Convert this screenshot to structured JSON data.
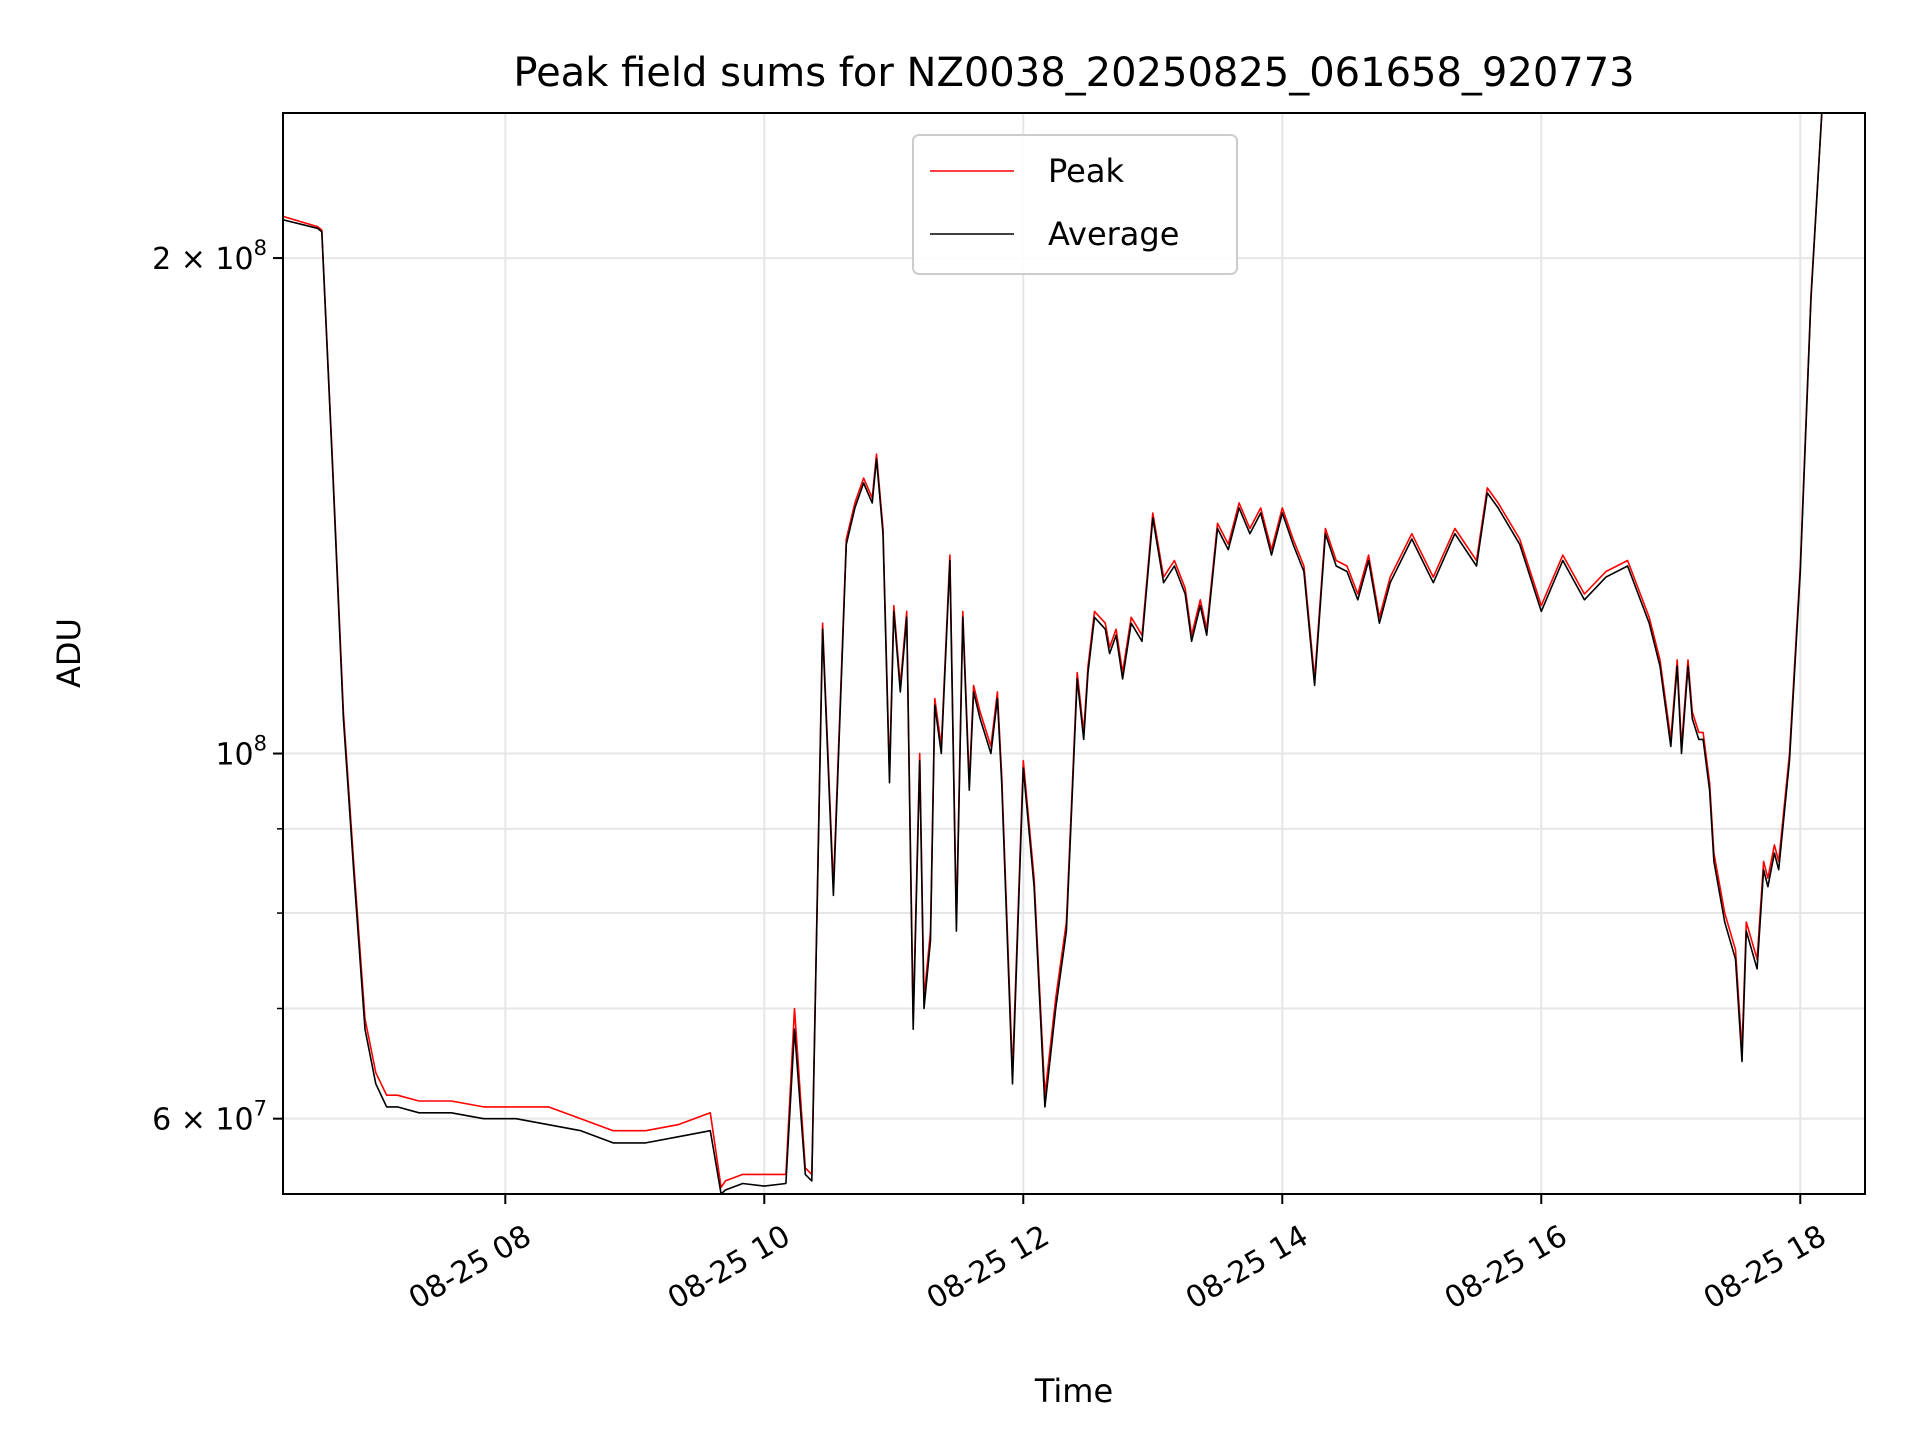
{
  "chart_data": {
    "type": "line",
    "title": "Peak field sums for NZ0038_20250825_061658_920773",
    "xlabel": "Time",
    "ylabel": "ADU",
    "y_scale": "log",
    "xlim": [
      "2025-08-25 06:17",
      "2025-08-25 18:30"
    ],
    "ylim": [
      54000000,
      245000000
    ],
    "grid": true,
    "legend": "upper center",
    "x_ticks": [
      {
        "value": "2025-08-25 08:00",
        "label": "08-25 08"
      },
      {
        "value": "2025-08-25 10:00",
        "label": "08-25 10"
      },
      {
        "value": "2025-08-25 12:00",
        "label": "08-25 12"
      },
      {
        "value": "2025-08-25 14:00",
        "label": "08-25 14"
      },
      {
        "value": "2025-08-25 16:00",
        "label": "08-25 16"
      },
      {
        "value": "2025-08-25 18:00",
        "label": "08-25 18"
      }
    ],
    "y_ticks": [
      {
        "value": 60000000,
        "base": "6 × 10",
        "exp": "7"
      },
      {
        "value": 100000000,
        "base": "10",
        "exp": "8"
      },
      {
        "value": 200000000,
        "base": "2 × 10",
        "exp": "8"
      }
    ],
    "series": [
      {
        "name": "Peak",
        "color": "#ff0000",
        "x": [
          "06:17",
          "06:33",
          "06:35",
          "06:40",
          "06:45",
          "06:50",
          "06:55",
          "07:00",
          "07:05",
          "07:10",
          "07:20",
          "07:35",
          "07:50",
          "08:05",
          "08:20",
          "08:35",
          "08:50",
          "09:05",
          "09:20",
          "09:35",
          "09:40",
          "09:42",
          "09:50",
          "10:00",
          "10:10",
          "10:14",
          "10:19",
          "10:22",
          "10:27",
          "10:32",
          "10:38",
          "10:42",
          "10:46",
          "10:50",
          "10:52",
          "10:55",
          "10:58",
          "11:00",
          "11:03",
          "11:06",
          "11:09",
          "11:12",
          "11:14",
          "11:17",
          "11:19",
          "11:22",
          "11:26",
          "11:29",
          "11:32",
          "11:35",
          "11:37",
          "11:40",
          "11:42",
          "11:45",
          "11:48",
          "11:50",
          "11:55",
          "12:00",
          "12:05",
          "12:10",
          "12:15",
          "12:20",
          "12:25",
          "12:28",
          "12:30",
          "12:33",
          "12:38",
          "12:40",
          "12:43",
          "12:46",
          "12:50",
          "12:55",
          "13:00",
          "13:05",
          "13:10",
          "13:15",
          "13:18",
          "13:22",
          "13:25",
          "13:30",
          "13:35",
          "13:40",
          "13:45",
          "13:50",
          "13:55",
          "14:00",
          "14:05",
          "14:10",
          "14:15",
          "14:20",
          "14:25",
          "14:30",
          "14:35",
          "14:40",
          "14:45",
          "14:50",
          "15:00",
          "15:10",
          "15:20",
          "15:30",
          "15:35",
          "15:40",
          "15:50",
          "16:00",
          "16:10",
          "16:20",
          "16:30",
          "16:40",
          "16:50",
          "16:55",
          "17:00",
          "17:03",
          "17:05",
          "17:08",
          "17:10",
          "17:13",
          "17:15",
          "17:18",
          "17:20",
          "17:25",
          "17:30",
          "17:33",
          "17:35",
          "17:40",
          "17:43",
          "17:45",
          "17:48",
          "17:50",
          "17:55",
          "18:00",
          "18:05",
          "18:10",
          "18:15",
          "18:20"
        ],
        "values": [
          212000000,
          209000000,
          208000000,
          150000000,
          106000000,
          85000000,
          69000000,
          64000000,
          62000000,
          62000000,
          61500000,
          61500000,
          61000000,
          61000000,
          61000000,
          60000000,
          59000000,
          59000000,
          59500000,
          60500000,
          54500000,
          55000000,
          55500000,
          55500000,
          55500000,
          70000000,
          56000000,
          55500000,
          120000000,
          83000000,
          135000000,
          142000000,
          147000000,
          143000000,
          152000000,
          137000000,
          97000000,
          123000000,
          110000000,
          122000000,
          69000000,
          100000000,
          71000000,
          78000000,
          108000000,
          101000000,
          132000000,
          79000000,
          122000000,
          96000000,
          110000000,
          106000000,
          104000000,
          101000000,
          109000000,
          97000000,
          64000000,
          99000000,
          84000000,
          62000000,
          71000000,
          79000000,
          112000000,
          103000000,
          113000000,
          122000000,
          120000000,
          116000000,
          119000000,
          112000000,
          121000000,
          118000000,
          140000000,
          128000000,
          131000000,
          126000000,
          118000000,
          124000000,
          119000000,
          138000000,
          134000000,
          142000000,
          137000000,
          141000000,
          133000000,
          141000000,
          135000000,
          130000000,
          111000000,
          137000000,
          131000000,
          130000000,
          125000000,
          132000000,
          121000000,
          128000000,
          136000000,
          128000000,
          137000000,
          131000000,
          145000000,
          142000000,
          135000000,
          123000000,
          132000000,
          125000000,
          129000000,
          131000000,
          121000000,
          114000000,
          102000000,
          114000000,
          101000000,
          114000000,
          106000000,
          103000000,
          103000000,
          96000000,
          87000000,
          80000000,
          76000000,
          66000000,
          79000000,
          75000000,
          86000000,
          84000000,
          88000000,
          86000000,
          100000000,
          130000000,
          190000000,
          245000000,
          245000000,
          245000000
        ]
      },
      {
        "name": "Average",
        "color": "#000000",
        "x": [
          "06:17",
          "06:33",
          "06:35",
          "06:40",
          "06:45",
          "06:50",
          "06:55",
          "07:00",
          "07:05",
          "07:10",
          "07:20",
          "07:35",
          "07:50",
          "08:05",
          "08:20",
          "08:35",
          "08:50",
          "09:05",
          "09:20",
          "09:35",
          "09:40",
          "09:42",
          "09:50",
          "10:00",
          "10:10",
          "10:14",
          "10:19",
          "10:22",
          "10:27",
          "10:32",
          "10:38",
          "10:42",
          "10:46",
          "10:50",
          "10:52",
          "10:55",
          "10:58",
          "11:00",
          "11:03",
          "11:06",
          "11:09",
          "11:12",
          "11:14",
          "11:17",
          "11:19",
          "11:22",
          "11:26",
          "11:29",
          "11:32",
          "11:35",
          "11:37",
          "11:40",
          "11:42",
          "11:45",
          "11:48",
          "11:50",
          "11:55",
          "12:00",
          "12:05",
          "12:10",
          "12:15",
          "12:20",
          "12:25",
          "12:28",
          "12:30",
          "12:33",
          "12:38",
          "12:40",
          "12:43",
          "12:46",
          "12:50",
          "12:55",
          "13:00",
          "13:05",
          "13:10",
          "13:15",
          "13:18",
          "13:22",
          "13:25",
          "13:30",
          "13:35",
          "13:40",
          "13:45",
          "13:50",
          "13:55",
          "14:00",
          "14:05",
          "14:10",
          "14:15",
          "14:20",
          "14:25",
          "14:30",
          "14:35",
          "14:40",
          "14:45",
          "14:50",
          "15:00",
          "15:10",
          "15:20",
          "15:30",
          "15:35",
          "15:40",
          "15:50",
          "16:00",
          "16:10",
          "16:20",
          "16:30",
          "16:40",
          "16:50",
          "16:55",
          "17:00",
          "17:03",
          "17:05",
          "17:08",
          "17:10",
          "17:13",
          "17:15",
          "17:18",
          "17:20",
          "17:25",
          "17:30",
          "17:33",
          "17:35",
          "17:40",
          "17:43",
          "17:45",
          "17:48",
          "17:50",
          "17:55",
          "18:00",
          "18:05",
          "18:10",
          "18:15",
          "18:20"
        ],
        "values": [
          211000000,
          208500000,
          207500000,
          149000000,
          105000000,
          84000000,
          68000000,
          63000000,
          61000000,
          61000000,
          60500000,
          60500000,
          60000000,
          60000000,
          59500000,
          59000000,
          58000000,
          58000000,
          58500000,
          59000000,
          54000000,
          54300000,
          54800000,
          54600000,
          54800000,
          68000000,
          55500000,
          55000000,
          119000000,
          82000000,
          134000000,
          141000000,
          146000000,
          142000000,
          151000000,
          136000000,
          96000000,
          122000000,
          109000000,
          121000000,
          68000000,
          99000000,
          70000000,
          77000000,
          107000000,
          100000000,
          131000000,
          78000000,
          121000000,
          95000000,
          109000000,
          105000000,
          103000000,
          100000000,
          108000000,
          96000000,
          63000000,
          98000000,
          83000000,
          61000000,
          70000000,
          78000000,
          111000000,
          102000000,
          112000000,
          121000000,
          119000000,
          115000000,
          118000000,
          111000000,
          120000000,
          117000000,
          139000000,
          127000000,
          130000000,
          125000000,
          117000000,
          123000000,
          118000000,
          137000000,
          133000000,
          141000000,
          136000000,
          140000000,
          132000000,
          140000000,
          134000000,
          129000000,
          110000000,
          136000000,
          130000000,
          129000000,
          124000000,
          131000000,
          120000000,
          127000000,
          135000000,
          127000000,
          136000000,
          130000000,
          144000000,
          141000000,
          134000000,
          122000000,
          131000000,
          124000000,
          128000000,
          130000000,
          120000000,
          113000000,
          101000000,
          113000000,
          100000000,
          113000000,
          105000000,
          102000000,
          102000000,
          95000000,
          86000000,
          79000000,
          75000000,
          65000000,
          78000000,
          74000000,
          85000000,
          83000000,
          87000000,
          85000000,
          99000000,
          129000000,
          189000000,
          245000000,
          245000000,
          245000000
        ]
      }
    ]
  }
}
